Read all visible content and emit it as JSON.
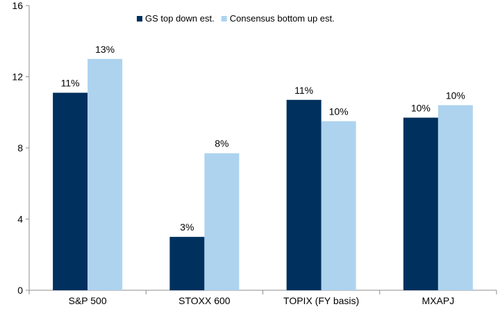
{
  "chart_data": {
    "type": "bar",
    "title": "",
    "xlabel": "",
    "ylabel": "",
    "ylim": [
      0,
      16
    ],
    "yticks": [
      0,
      4,
      8,
      12,
      16
    ],
    "grid": false,
    "legend_position": "top",
    "categories": [
      "S&P 500",
      "STOXX 600",
      "TOPIX (FY basis)",
      "MXAPJ"
    ],
    "series": [
      {
        "name": "GS top down est.",
        "color": "#00305e",
        "values": [
          11.1,
          3.0,
          10.7,
          9.7
        ],
        "labels": [
          "11%",
          "3%",
          "11%",
          "10%"
        ]
      },
      {
        "name": "Consensus bottom up est.",
        "color": "#add3ef",
        "values": [
          13.0,
          7.7,
          9.5,
          10.4
        ],
        "labels": [
          "13%",
          "8%",
          "10%",
          "10%"
        ]
      }
    ]
  }
}
